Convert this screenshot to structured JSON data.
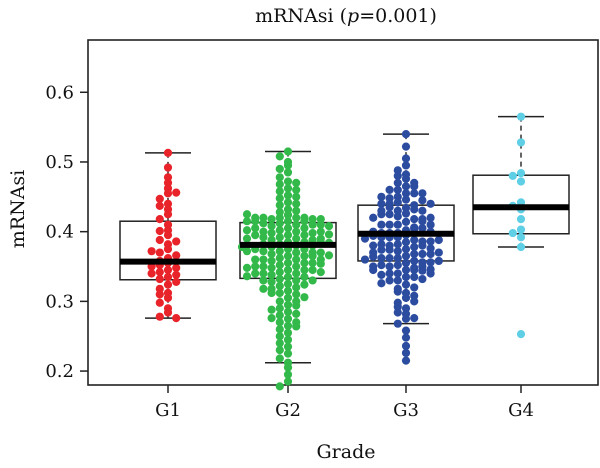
{
  "chart_data": {
    "type": "box",
    "title_main": "mRNAsi (",
    "title_p": "p",
    "title_rest": "=0.001)",
    "xlabel": "Grade",
    "ylabel": "mRNAsi",
    "ylim": [
      0.18,
      0.675
    ],
    "yticks": [
      "0.2",
      "0.3",
      "0.4",
      "0.5",
      "0.6"
    ],
    "grid": false,
    "categories": [
      "G1",
      "G2",
      "G3",
      "G4"
    ],
    "colors": [
      "#e8232a",
      "#32b94a",
      "#2c4ca0",
      "#5fcfe6"
    ],
    "boxes": [
      {
        "category": "G1",
        "whisker_low": 0.276,
        "q1": 0.331,
        "median": 0.357,
        "q3": 0.415,
        "whisker_high": 0.513
      },
      {
        "category": "G2",
        "whisker_low": 0.212,
        "q1": 0.333,
        "median": 0.381,
        "q3": 0.413,
        "whisker_high": 0.515
      },
      {
        "category": "G3",
        "whisker_low": 0.268,
        "q1": 0.358,
        "median": 0.397,
        "q3": 0.438,
        "whisker_high": 0.54
      },
      {
        "category": "G4",
        "whisker_low": 0.378,
        "q1": 0.397,
        "median": 0.435,
        "q3": 0.481,
        "whisker_high": 0.565
      }
    ],
    "points": {
      "G1": [
        0.513,
        0.492,
        0.478,
        0.47,
        0.462,
        0.455,
        0.447,
        0.44,
        0.432,
        0.425,
        0.418,
        0.41,
        0.402,
        0.395,
        0.388,
        0.382,
        0.375,
        0.37,
        0.366,
        0.362,
        0.358,
        0.355,
        0.352,
        0.348,
        0.345,
        0.342,
        0.338,
        0.335,
        0.332,
        0.328,
        0.324,
        0.318,
        0.312,
        0.305,
        0.298,
        0.29,
        0.284,
        0.278,
        0.276,
        0.35,
        0.372,
        0.401,
        0.437,
        0.456,
        0.386,
        0.34,
        0.31
      ],
      "G2": [
        0.515,
        0.508,
        0.5,
        0.495,
        0.49,
        0.485,
        0.478,
        0.472,
        0.468,
        0.462,
        0.458,
        0.452,
        0.448,
        0.442,
        0.438,
        0.432,
        0.428,
        0.424,
        0.42,
        0.42,
        0.418,
        0.415,
        0.412,
        0.41,
        0.408,
        0.405,
        0.402,
        0.4,
        0.398,
        0.395,
        0.392,
        0.39,
        0.388,
        0.385,
        0.382,
        0.38,
        0.378,
        0.375,
        0.372,
        0.37,
        0.368,
        0.365,
        0.362,
        0.36,
        0.358,
        0.355,
        0.352,
        0.35,
        0.348,
        0.345,
        0.342,
        0.34,
        0.338,
        0.335,
        0.332,
        0.33,
        0.328,
        0.325,
        0.322,
        0.32,
        0.318,
        0.315,
        0.312,
        0.31,
        0.305,
        0.3,
        0.295,
        0.29,
        0.285,
        0.28,
        0.275,
        0.27,
        0.265,
        0.26,
        0.255,
        0.25,
        0.245,
        0.24,
        0.235,
        0.23,
        0.225,
        0.218,
        0.212,
        0.205,
        0.195,
        0.185,
        0.178,
        0.42,
        0.42,
        0.418,
        0.415,
        0.412,
        0.41,
        0.405,
        0.4,
        0.398,
        0.395,
        0.392,
        0.388,
        0.385,
        0.382,
        0.38,
        0.378,
        0.375,
        0.372,
        0.37,
        0.365,
        0.36,
        0.355,
        0.35,
        0.345,
        0.34,
        0.335,
        0.33,
        0.42,
        0.418,
        0.415,
        0.41,
        0.405,
        0.4,
        0.395,
        0.39,
        0.385,
        0.38,
        0.375,
        0.37,
        0.365,
        0.36,
        0.355,
        0.35,
        0.345,
        0.34,
        0.47,
        0.46,
        0.45,
        0.44,
        0.43,
        0.425,
        0.415,
        0.408,
        0.402,
        0.396,
        0.39,
        0.384,
        0.378,
        0.372,
        0.366,
        0.36,
        0.354,
        0.348,
        0.342,
        0.336,
        0.33,
        0.324,
        0.318,
        0.312,
        0.306,
        0.3,
        0.294,
        0.288,
        0.282,
        0.276,
        0.27,
        0.264
      ],
      "G3": [
        0.54,
        0.522,
        0.505,
        0.495,
        0.488,
        0.482,
        0.476,
        0.47,
        0.465,
        0.46,
        0.455,
        0.45,
        0.446,
        0.442,
        0.438,
        0.434,
        0.43,
        0.426,
        0.422,
        0.418,
        0.414,
        0.41,
        0.406,
        0.402,
        0.398,
        0.395,
        0.392,
        0.388,
        0.385,
        0.382,
        0.378,
        0.375,
        0.372,
        0.368,
        0.365,
        0.362,
        0.358,
        0.355,
        0.352,
        0.348,
        0.345,
        0.34,
        0.335,
        0.33,
        0.324,
        0.318,
        0.312,
        0.305,
        0.298,
        0.29,
        0.282,
        0.275,
        0.268,
        0.258,
        0.248,
        0.236,
        0.226,
        0.215,
        0.455,
        0.448,
        0.44,
        0.432,
        0.425,
        0.418,
        0.41,
        0.404,
        0.398,
        0.392,
        0.386,
        0.38,
        0.374,
        0.368,
        0.362,
        0.356,
        0.35,
        0.345,
        0.34,
        0.335,
        0.33,
        0.465,
        0.455,
        0.445,
        0.435,
        0.425,
        0.415,
        0.405,
        0.398,
        0.392,
        0.386,
        0.38,
        0.374,
        0.368,
        0.362,
        0.356,
        0.35,
        0.344,
        0.338,
        0.332,
        0.326,
        0.32,
        0.314,
        0.308,
        0.3,
        0.292,
        0.284,
        0.276,
        0.44,
        0.43,
        0.42,
        0.41,
        0.4,
        0.394,
        0.388,
        0.382,
        0.376,
        0.37,
        0.364,
        0.358,
        0.352,
        0.346,
        0.34,
        0.48,
        0.47,
        0.46,
        0.45,
        0.44,
        0.43,
        0.42,
        0.41,
        0.4,
        0.39,
        0.38,
        0.37,
        0.36,
        0.35,
        0.345
      ],
      "G4": [
        0.565,
        0.528,
        0.484,
        0.48,
        0.472,
        0.442,
        0.437,
        0.432,
        0.418,
        0.403,
        0.398,
        0.392,
        0.378,
        0.253
      ]
    }
  }
}
